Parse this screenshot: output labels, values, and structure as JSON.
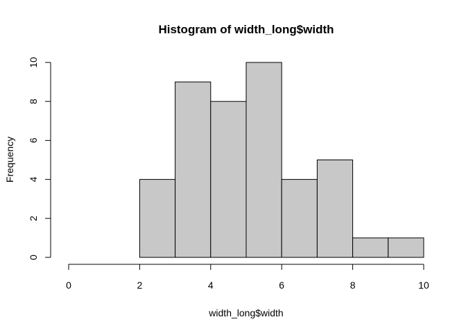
{
  "chart_data": {
    "type": "bar",
    "title": "Histogram of width_long$width",
    "xlabel": "width_long$width",
    "ylabel": "Frequency",
    "bins": [
      {
        "from": 2,
        "to": 3,
        "count": 4
      },
      {
        "from": 3,
        "to": 4,
        "count": 9
      },
      {
        "from": 4,
        "to": 5,
        "count": 8
      },
      {
        "from": 5,
        "to": 6,
        "count": 10
      },
      {
        "from": 6,
        "to": 7,
        "count": 4
      },
      {
        "from": 7,
        "to": 8,
        "count": 5
      },
      {
        "from": 8,
        "to": 9,
        "count": 1
      },
      {
        "from": 9,
        "to": 10,
        "count": 1
      }
    ],
    "xlim": [
      0,
      10
    ],
    "ylim": [
      0,
      10
    ],
    "xticks": [
      0,
      2,
      4,
      6,
      8,
      10
    ],
    "yticks": [
      0,
      2,
      4,
      6,
      8,
      10
    ],
    "bar_color": "#c8c8c8",
    "grid": false,
    "legend": "none"
  }
}
